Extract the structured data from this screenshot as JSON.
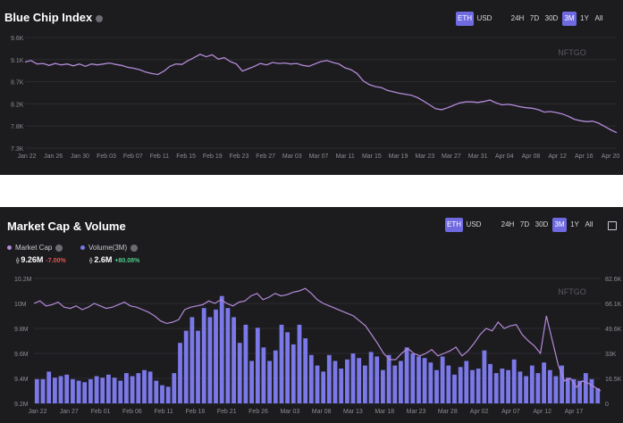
{
  "chart1": {
    "title": "Blue Chip Index",
    "currency_buttons": [
      "ETH",
      "USD"
    ],
    "active_currency": "ETH",
    "range_buttons": [
      "24H",
      "7D",
      "30D",
      "3M",
      "1Y",
      "All"
    ],
    "active_range": "3M",
    "watermark": "NFTGO",
    "colors": {
      "line": "#b48ad8",
      "accent": "#6f6ae0"
    },
    "chart_data": {
      "type": "line",
      "title": "Blue Chip Index",
      "y_ticks": [
        "9.6K",
        "9.1K",
        "8.7K",
        "8.2K",
        "7.8K",
        "7.3K"
      ],
      "ylim": [
        7.3,
        9.6
      ],
      "x_ticks": [
        "Jan 22",
        "Jan 26",
        "Jan 30",
        "Feb 03",
        "Feb 07",
        "Feb 11",
        "Feb 15",
        "Feb 19",
        "Feb 23",
        "Feb 27",
        "Mar 03",
        "Mar 07",
        "Mar 11",
        "Mar 15",
        "Mar 19",
        "Mar 23",
        "Mar 27",
        "Mar 31",
        "Apr 04",
        "Apr 08",
        "Apr 12",
        "Apr 16",
        "Apr 20"
      ],
      "series": [
        {
          "values": [
            9.09,
            9.12,
            9.05,
            9.06,
            9.02,
            9.06,
            9.03,
            9.05,
            9.01,
            9.05,
            9.0,
            9.05,
            9.03,
            9.05,
            9.07,
            9.04,
            9.02,
            8.98,
            8.96,
            8.93,
            8.88,
            8.85,
            8.83,
            8.9,
            9.0,
            9.05,
            9.04,
            9.12,
            9.18,
            9.25,
            9.2,
            9.24,
            9.15,
            9.18,
            9.1,
            9.05,
            8.9,
            8.95,
            9.0,
            9.06,
            9.03,
            9.08,
            9.06,
            9.07,
            9.05,
            9.06,
            9.02,
            9.0,
            9.05,
            9.1,
            9.12,
            9.08,
            9.05,
            8.97,
            8.93,
            8.85,
            8.7,
            8.62,
            8.58,
            8.56,
            8.5,
            8.47,
            8.44,
            8.42,
            8.4,
            8.35,
            8.28,
            8.2,
            8.12,
            8.1,
            8.14,
            8.19,
            8.24,
            8.26,
            8.26,
            8.25,
            8.27,
            8.3,
            8.24,
            8.2,
            8.21,
            8.19,
            8.16,
            8.14,
            8.13,
            8.1,
            8.05,
            8.06,
            8.04,
            8.01,
            7.96,
            7.9,
            7.87,
            7.85,
            7.86,
            7.82,
            7.75,
            7.68,
            7.62
          ]
        }
      ]
    }
  },
  "chart2": {
    "title": "Market Cap & Volume",
    "currency_buttons": [
      "ETH",
      "USD"
    ],
    "active_currency": "ETH",
    "range_buttons": [
      "24H",
      "7D",
      "30D",
      "3M",
      "1Y",
      "All"
    ],
    "active_range": "3M",
    "calendar_icon": "calendar-icon",
    "watermark": "NFTGO",
    "legend": [
      {
        "label": "Market Cap",
        "value": "9.26M",
        "change": "-7.00%",
        "color": "#b48ad8",
        "change_color": "#e0554d"
      },
      {
        "label": "Volume(3M)",
        "value": "2.6M",
        "change": "+80.08%",
        "color": "#7b78e8",
        "change_color": "#4fc98a"
      }
    ],
    "colors": {
      "line": "#b48ad8",
      "bar": "#7b78e8"
    },
    "chart_data": {
      "type": "bar",
      "title": "Market Cap & Volume",
      "left_ticks": [
        "10.2M",
        "10M",
        "9.8M",
        "9.6M",
        "9.4M",
        "9.2M"
      ],
      "ylim_left": [
        9.2,
        10.2
      ],
      "right_ticks": [
        "82.6K",
        "66.1K",
        "49.6K",
        "33K",
        "16.5K",
        "0"
      ],
      "ylim_right": [
        0,
        82.6
      ],
      "x_ticks": [
        "Jan 22",
        "Jan 27",
        "Feb 01",
        "Feb 06",
        "Feb 11",
        "Feb 16",
        "Feb 21",
        "Feb 26",
        "Mar 03",
        "Mar 08",
        "Mar 13",
        "Mar 18",
        "Mar 23",
        "Mar 28",
        "Apr 02",
        "Apr 07",
        "Apr 12",
        "Apr 17"
      ],
      "series": [
        {
          "name": "Volume(3M)",
          "type": "bar",
          "axis": "right",
          "values": [
            16,
            16,
            21,
            17,
            18,
            19,
            16,
            15,
            14,
            16,
            18,
            17,
            19,
            17,
            15,
            20,
            18,
            20,
            22,
            21,
            15,
            12,
            11,
            20,
            40,
            48,
            57,
            48,
            63,
            57,
            62,
            71,
            63,
            57,
            40,
            52,
            28,
            50,
            37,
            28,
            35,
            52,
            47,
            39,
            52,
            43,
            32,
            25,
            21,
            32,
            28,
            23,
            29,
            33,
            30,
            25,
            34,
            31,
            22,
            32,
            25,
            28,
            37,
            33,
            31,
            30,
            27,
            22,
            31,
            25,
            19,
            24,
            28,
            22,
            23,
            35,
            26,
            20,
            23,
            22,
            29,
            21,
            18,
            25,
            20,
            27,
            22,
            18,
            25,
            17,
            16,
            15,
            20,
            16,
            10
          ]
        },
        {
          "name": "Market Cap",
          "type": "line",
          "axis": "left",
          "values": [
            10.0,
            10.02,
            9.98,
            9.99,
            10.01,
            9.97,
            9.96,
            9.98,
            9.95,
            9.97,
            10.0,
            9.98,
            9.96,
            9.97,
            9.99,
            10.01,
            9.98,
            9.97,
            9.95,
            9.93,
            9.9,
            9.86,
            9.84,
            9.85,
            9.87,
            9.95,
            9.97,
            9.98,
            9.99,
            10.02,
            10.0,
            10.03,
            10.0,
            9.98,
            10.01,
            10.02,
            10.06,
            10.08,
            10.03,
            10.05,
            10.08,
            10.06,
            10.07,
            10.09,
            10.1,
            10.12,
            10.08,
            10.03,
            10.0,
            9.98,
            9.96,
            9.94,
            9.92,
            9.9,
            9.86,
            9.82,
            9.75,
            9.68,
            9.6,
            9.55,
            9.55,
            9.6,
            9.64,
            9.6,
            9.58,
            9.6,
            9.63,
            9.58,
            9.6,
            9.62,
            9.65,
            9.58,
            9.62,
            9.68,
            9.75,
            9.8,
            9.78,
            9.85,
            9.8,
            9.82,
            9.83,
            9.75,
            9.7,
            9.66,
            9.6,
            9.9,
            9.7,
            9.5,
            9.38,
            9.4,
            9.33,
            9.38,
            9.36,
            9.33,
            9.3
          ]
        }
      ]
    }
  }
}
